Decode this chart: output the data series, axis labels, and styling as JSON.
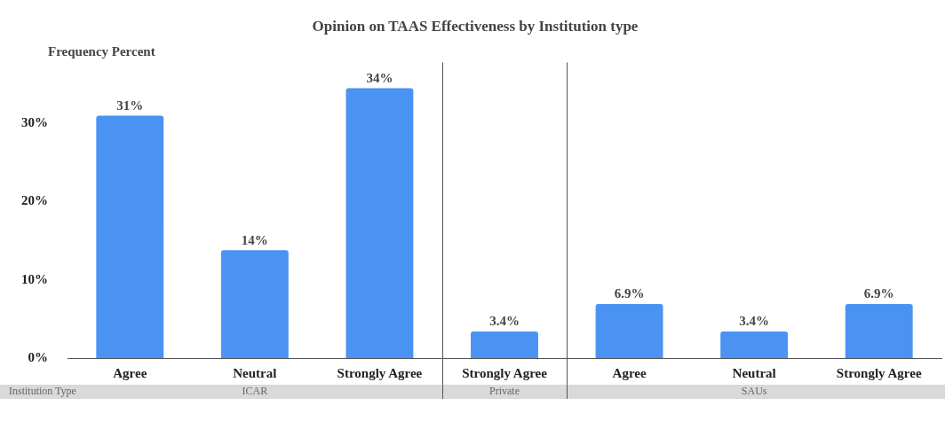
{
  "chart_data": {
    "type": "bar",
    "title": "Opinion on TAAS Effectiveness by Institution type",
    "ylabel": "Frequency Percent",
    "categories": [
      "Agree",
      "Neutral",
      "Strongly Agree",
      "Strongly Agree",
      "Agree",
      "Neutral",
      "Strongly Agree"
    ],
    "values": [
      31,
      13.8,
      34.5,
      3.4,
      6.9,
      3.4,
      6.9
    ],
    "value_labels": [
      "31%",
      "14%",
      "34%",
      "3.4%",
      "6.9%",
      "3.4%",
      "6.9%"
    ],
    "color": "#4a93f2",
    "ylim": [
      0,
      37.8
    ],
    "yticks": [
      {
        "value": 0,
        "label": "0%"
      },
      {
        "value": 10,
        "label": "10%"
      },
      {
        "value": 20,
        "label": "20%"
      },
      {
        "value": 30,
        "label": "30%"
      }
    ],
    "annotations": [
      "Institution Type",
      "ICAR",
      "Private",
      "SAUs"
    ],
    "grid": false,
    "legend": false
  }
}
